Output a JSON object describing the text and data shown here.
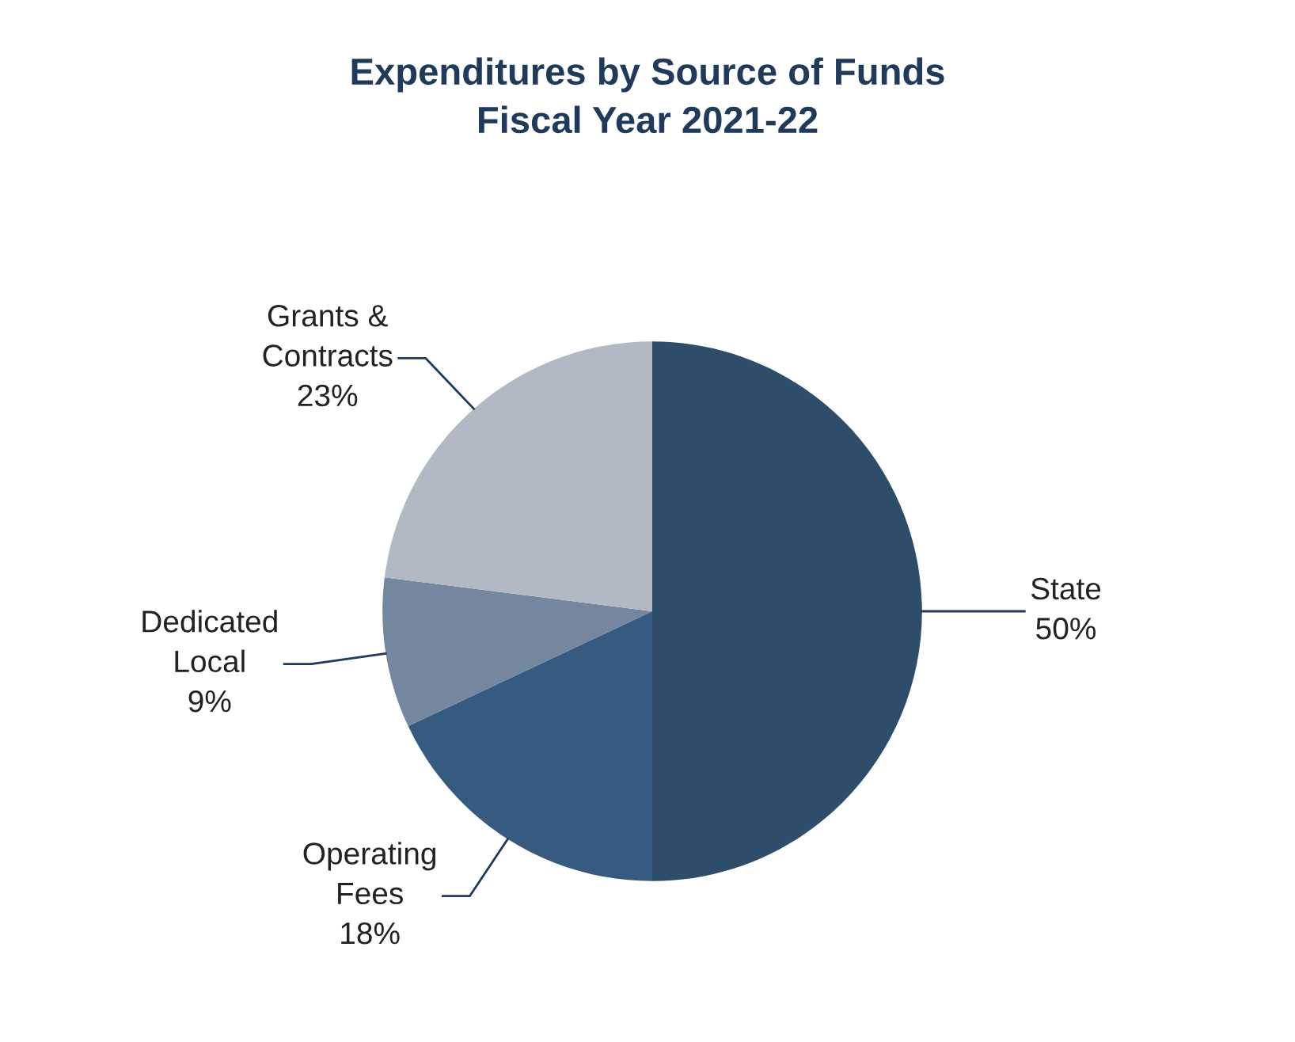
{
  "chart_data": {
    "type": "pie",
    "title": "Expenditures by Source of Funds",
    "subtitle": "Fiscal Year 2021-22",
    "categories": [
      "State",
      "Operating\nFees",
      "Dedicated\nLocal",
      "Grants &\nContracts"
    ],
    "values": [
      50,
      18,
      9,
      23
    ],
    "colors": [
      "#2e4d6b",
      "#375b80",
      "#74879f",
      "#b2b9c5"
    ],
    "value_labels": [
      "50%",
      "18%",
      "9%",
      "23%"
    ],
    "legend": false
  }
}
